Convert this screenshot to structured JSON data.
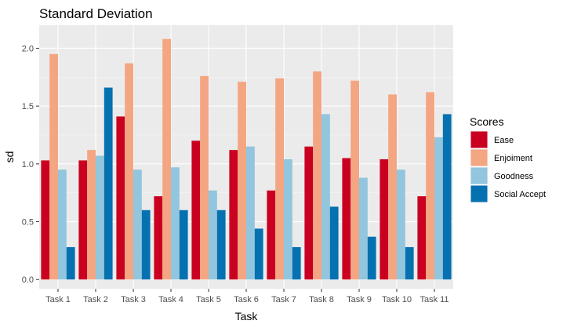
{
  "chart_data": {
    "type": "bar",
    "title": "Standard Deviation",
    "xlabel": "Task",
    "ylabel": "sd",
    "categories": [
      "Task 1",
      "Task 2",
      "Task 3",
      "Task 4",
      "Task 5",
      "Task 6",
      "Task 7",
      "Task 8",
      "Task 9",
      "Task 10",
      "Task 11"
    ],
    "series": [
      {
        "name": "Ease",
        "color": "#ca0020",
        "values": [
          1.03,
          1.03,
          1.41,
          0.72,
          1.2,
          1.12,
          0.77,
          1.15,
          1.05,
          1.04,
          0.72
        ]
      },
      {
        "name": "Enjoiment",
        "color": "#f4a582",
        "values": [
          1.95,
          1.12,
          1.87,
          2.08,
          1.76,
          1.71,
          1.74,
          1.8,
          1.72,
          1.6,
          1.62
        ]
      },
      {
        "name": "Goodness",
        "color": "#92c5de",
        "values": [
          0.95,
          1.07,
          0.95,
          0.97,
          0.77,
          1.15,
          1.04,
          1.43,
          0.88,
          0.95,
          1.23
        ]
      },
      {
        "name": "Social Accept",
        "color": "#0571b0",
        "values": [
          0.28,
          1.66,
          0.6,
          0.6,
          0.6,
          0.44,
          0.28,
          0.63,
          0.37,
          0.28,
          1.43
        ]
      }
    ],
    "ylim": [
      -0.08,
      2.2
    ],
    "yticks": [
      0.0,
      0.5,
      1.0,
      1.5,
      2.0
    ],
    "ytick_labels": [
      "0.0",
      "0.5",
      "1.0",
      "1.5",
      "2.0"
    ],
    "grid": true,
    "legend": {
      "title": "Scores",
      "position": "right"
    },
    "panel_background": "#ebebeb"
  }
}
